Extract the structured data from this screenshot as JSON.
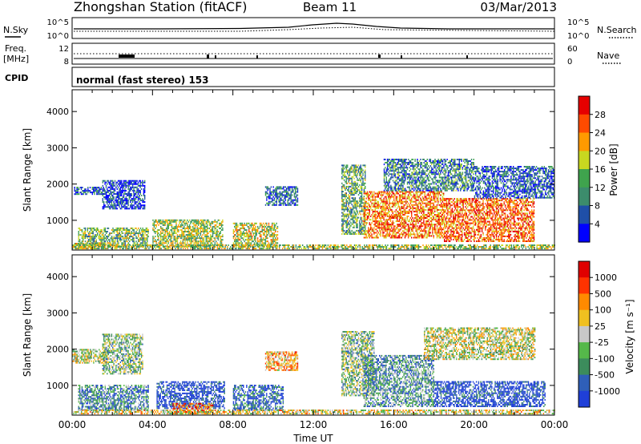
{
  "header": {
    "title": "Zhongshan Station (fitACF)",
    "beam": "Beam 11",
    "date": "03/Mar/2013"
  },
  "panels": {
    "nsky_label": "N.Sky",
    "nsearch_label": "N.Search",
    "noise_left_ticks": [
      "10^5",
      "10^0"
    ],
    "noise_right_ticks": [
      "10^5",
      "10^0"
    ],
    "freq_label_line1": "Freq.",
    "freq_label_line2": "[MHz]",
    "freq_ticks": [
      "12",
      "8"
    ],
    "nave_label": "Nave",
    "nave_ticks": [
      "60",
      "0"
    ],
    "cpid_label": "CPID",
    "cpid_value": "normal (fast stereo) 153"
  },
  "chart_data": [
    {
      "type": "heatmap",
      "name": "power",
      "ylabel": "Slant Range [km]",
      "ylim": [
        180,
        4600
      ],
      "yticks": [
        "1000",
        "2000",
        "3000",
        "4000"
      ],
      "xlim": [
        0,
        24
      ],
      "colorbar_label": "Power [dB]",
      "colorbar_ticks": [
        "4",
        "8",
        "12",
        "16",
        "20",
        "24",
        "28"
      ],
      "colors": [
        "#0000ff",
        "#1f4fa8",
        "#3c8c6c",
        "#3fa34d",
        "#c8d820",
        "#ff9a00",
        "#ff4b00",
        "#e60000"
      ],
      "regions": [
        {
          "t": [
            0.0,
            1.6
          ],
          "r": [
            200,
            380
          ],
          "lvl": 0.55
        },
        {
          "t": [
            0.1,
            1.6
          ],
          "r": [
            1700,
            1900
          ],
          "lvl": 0.2
        },
        {
          "t": [
            1.5,
            3.6
          ],
          "r": [
            1300,
            2100
          ],
          "lvl": 0.15
        },
        {
          "t": [
            0.3,
            3.8
          ],
          "r": [
            260,
            800
          ],
          "lvl": 0.45
        },
        {
          "t": [
            4.0,
            7.5
          ],
          "r": [
            260,
            1000
          ],
          "lvl": 0.5
        },
        {
          "t": [
            8.0,
            10.2
          ],
          "r": [
            260,
            900
          ],
          "lvl": 0.55
        },
        {
          "t": [
            9.6,
            11.2
          ],
          "r": [
            1400,
            1900
          ],
          "lvl": 0.25
        },
        {
          "t": [
            13.4,
            14.6
          ],
          "r": [
            600,
            2500
          ],
          "lvl": 0.4
        },
        {
          "t": [
            14.5,
            18.5
          ],
          "r": [
            500,
            1800
          ],
          "lvl": 0.75
        },
        {
          "t": [
            15.5,
            20.0
          ],
          "r": [
            1800,
            2700
          ],
          "lvl": 0.3
        },
        {
          "t": [
            18.5,
            23.0
          ],
          "r": [
            400,
            1600
          ],
          "lvl": 0.8
        },
        {
          "t": [
            20.0,
            24.0
          ],
          "r": [
            1600,
            2500
          ],
          "lvl": 0.2
        },
        {
          "t": [
            0.0,
            24.0
          ],
          "r": [
            200,
            320
          ],
          "lvl": 0.5
        }
      ]
    },
    {
      "type": "heatmap",
      "name": "velocity",
      "ylabel": "Slant Range [km]",
      "ylim": [
        180,
        4600
      ],
      "yticks": [
        "1000",
        "2000",
        "3000",
        "4000"
      ],
      "xlim": [
        0,
        24
      ],
      "xticks": [
        "00:00",
        "04:00",
        "08:00",
        "12:00",
        "16:00",
        "20:00",
        "00:00"
      ],
      "xlabel": "Time UT",
      "colorbar_label": "Velocity [m s⁻¹]",
      "colorbar_ticks": [
        "1000",
        "500",
        "100",
        "25",
        "-25",
        "-100",
        "-500",
        "-1000"
      ],
      "colors": [
        "#1f3fd8",
        "#2f5fb8",
        "#3c8c5c",
        "#55b84a",
        "#c8c8c8",
        "#f0c020",
        "#ff8a00",
        "#ff3300",
        "#e00000"
      ],
      "regions": [
        {
          "t": [
            0.0,
            1.8
          ],
          "r": [
            1600,
            2000
          ],
          "lvl": 0.5
        },
        {
          "t": [
            1.5,
            3.5
          ],
          "r": [
            1300,
            2400
          ],
          "lvl": 0.4
        },
        {
          "t": [
            0.3,
            3.8
          ],
          "r": [
            300,
            1000
          ],
          "lvl": 0.25
        },
        {
          "t": [
            4.2,
            7.6
          ],
          "r": [
            350,
            1100
          ],
          "lvl": 0.05
        },
        {
          "t": [
            5.0,
            7.0
          ],
          "r": [
            200,
            500
          ],
          "lvl": 0.75
        },
        {
          "t": [
            8.0,
            10.5
          ],
          "r": [
            300,
            1000
          ],
          "lvl": 0.15
        },
        {
          "t": [
            9.6,
            11.2
          ],
          "r": [
            1400,
            1900
          ],
          "lvl": 0.65
        },
        {
          "t": [
            13.4,
            15.0
          ],
          "r": [
            700,
            2500
          ],
          "lvl": 0.4
        },
        {
          "t": [
            14.5,
            18.0
          ],
          "r": [
            400,
            1800
          ],
          "lvl": 0.3
        },
        {
          "t": [
            18.0,
            23.5
          ],
          "r": [
            400,
            1100
          ],
          "lvl": 0.05
        },
        {
          "t": [
            17.5,
            23.0
          ],
          "r": [
            1700,
            2600
          ],
          "lvl": 0.5
        },
        {
          "t": [
            0.0,
            24.0
          ],
          "r": [
            200,
            320
          ],
          "lvl": 0.55
        }
      ]
    }
  ]
}
